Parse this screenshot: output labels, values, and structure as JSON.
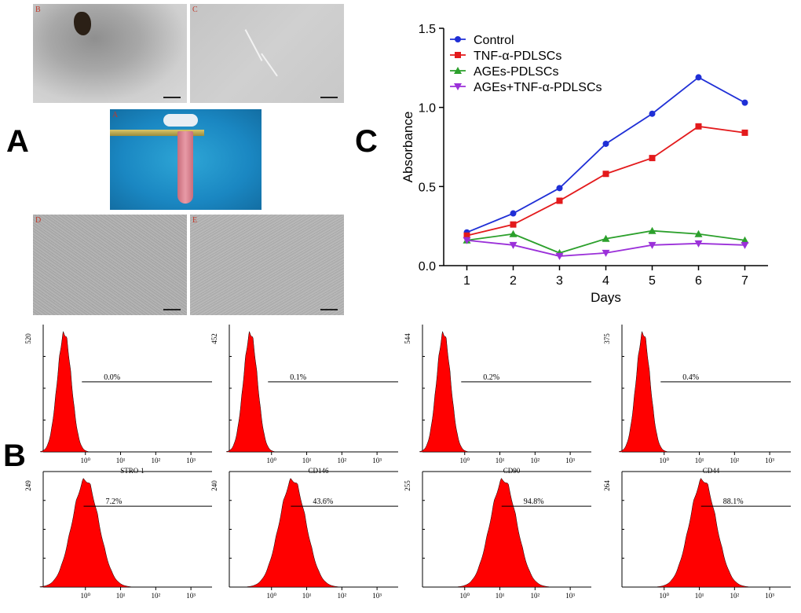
{
  "panel_labels": {
    "A": "A",
    "B": "B",
    "C": "C"
  },
  "micrographs": {
    "top_left_label": "B",
    "top_right_label": "C",
    "center_label": "A",
    "bottom_left_label": "D",
    "bottom_right_label": "E"
  },
  "colors": {
    "control": "#1f2fd6",
    "tnf": "#e31a1c",
    "ages": "#2ca02c",
    "ages_tnf": "#9b30d9",
    "histogram_fill": "#ff0000"
  },
  "chart_data": {
    "type": "line",
    "xlabel": "Days",
    "ylabel": "Absorbance",
    "x": [
      1,
      2,
      3,
      4,
      5,
      6,
      7
    ],
    "xlim": [
      0.5,
      7.5
    ],
    "ylim": [
      0,
      1.5
    ],
    "yticks": [
      "0.0",
      "0.5",
      "1.0",
      "1.5"
    ],
    "legend_position": "top-left",
    "grid": false,
    "series": [
      {
        "name": "Control",
        "marker": "circle",
        "values": [
          0.21,
          0.33,
          0.49,
          0.77,
          0.96,
          1.19,
          1.03
        ]
      },
      {
        "name": "TNF-α-PDLSCs",
        "marker": "square",
        "values": [
          0.19,
          0.26,
          0.41,
          0.58,
          0.68,
          0.88,
          0.84
        ]
      },
      {
        "name": "AGEs-PDLSCs",
        "marker": "triangle-up",
        "values": [
          0.16,
          0.2,
          0.08,
          0.17,
          0.22,
          0.2,
          0.16
        ]
      },
      {
        "name": "AGEs+TNF-α-PDLSCs",
        "marker": "triangle-down",
        "values": [
          0.16,
          0.13,
          0.06,
          0.08,
          0.13,
          0.14,
          0.13
        ]
      }
    ]
  },
  "flow": {
    "decade_labels": [
      "10⁰",
      "10¹",
      "10²",
      "10³"
    ],
    "top": [
      {
        "ymax": "520",
        "pct": "0.0%",
        "marker": "STRO-1",
        "center_log": -0.6
      },
      {
        "ymax": "452",
        "pct": "0.1%",
        "marker": "CD146",
        "center_log": -0.6
      },
      {
        "ymax": "544",
        "pct": "0.2%",
        "marker": "CD90",
        "center_log": -0.6
      },
      {
        "ymax": "375",
        "pct": "0.4%",
        "marker": "CD44",
        "center_log": -0.6
      }
    ],
    "bottom": [
      {
        "ymax": "249",
        "pct": "7.2%",
        "center_log": 0.0
      },
      {
        "ymax": "240",
        "pct": "43.6%",
        "center_log": 0.6
      },
      {
        "ymax": "255",
        "pct": "94.8%",
        "center_log": 1.1
      },
      {
        "ymax": "264",
        "pct": "88.1%",
        "center_log": 1.1
      }
    ]
  }
}
